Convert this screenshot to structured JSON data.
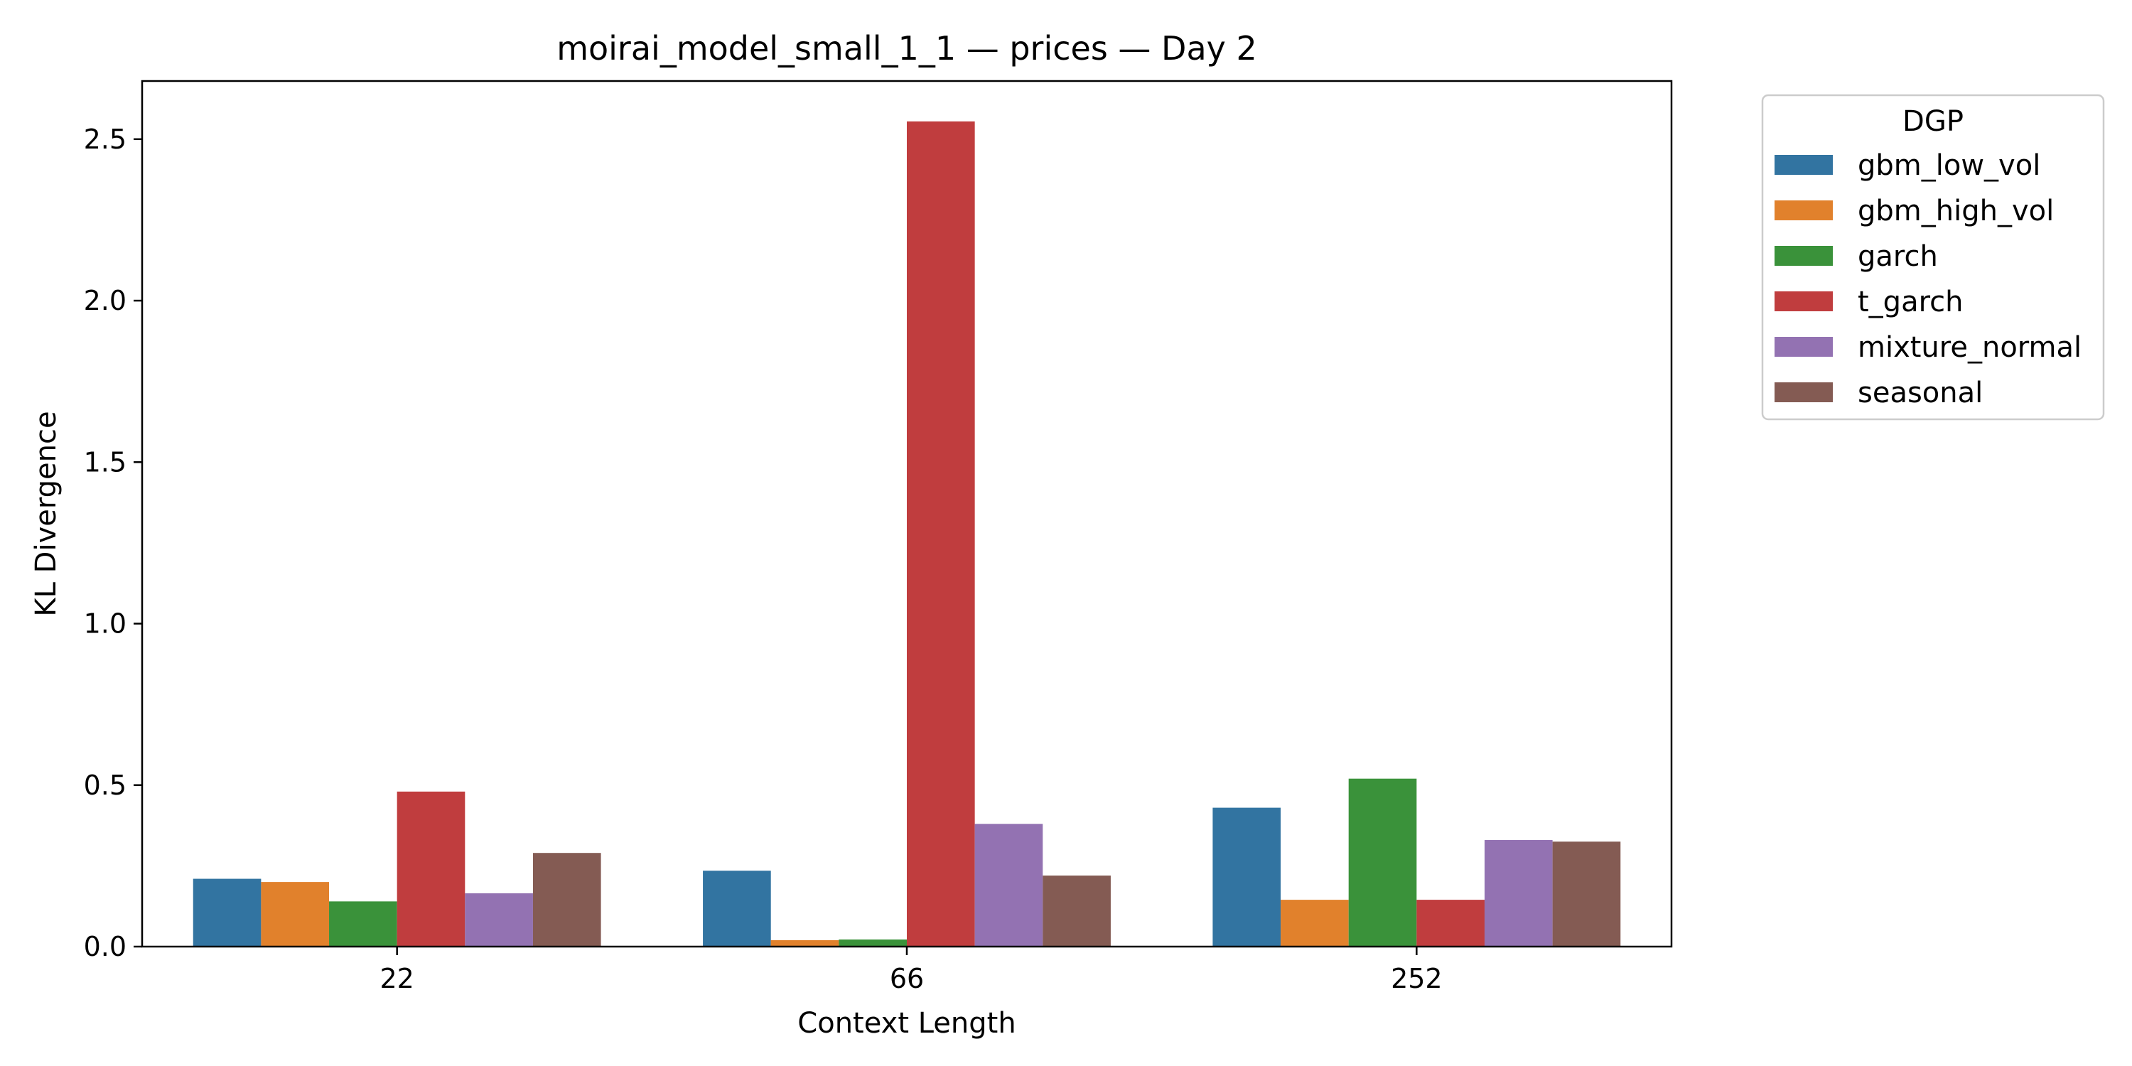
{
  "chart_data": {
    "type": "bar",
    "title": "moirai_model_small_1_1 — prices — Day 2",
    "xlabel": "Context Length",
    "ylabel": "KL Divergence",
    "categories": [
      "22",
      "66",
      "252"
    ],
    "ylim": [
      0,
      2.68
    ],
    "yticks": [
      0.0,
      0.5,
      1.0,
      1.5,
      2.0,
      2.5
    ],
    "ytick_labels": [
      "0.0",
      "0.5",
      "1.0",
      "1.5",
      "2.0",
      "2.5"
    ],
    "grid": false,
    "legend": {
      "title": "DGP",
      "placement": "outside-top-right"
    },
    "series": [
      {
        "name": "gbm_low_vol",
        "color": "#3274a1",
        "values": [
          0.21,
          0.235,
          0.43
        ]
      },
      {
        "name": "gbm_high_vol",
        "color": "#e1812c",
        "values": [
          0.2,
          0.02,
          0.145
        ]
      },
      {
        "name": "garch",
        "color": "#3a923a",
        "values": [
          0.14,
          0.022,
          0.52
        ]
      },
      {
        "name": "t_garch",
        "color": "#c03d3e",
        "values": [
          0.48,
          2.555,
          0.145
        ]
      },
      {
        "name": "mixture_normal",
        "color": "#9372b2",
        "values": [
          0.165,
          0.38,
          0.33
        ]
      },
      {
        "name": "seasonal",
        "color": "#845b53",
        "values": [
          0.29,
          0.22,
          0.325
        ]
      }
    ]
  }
}
